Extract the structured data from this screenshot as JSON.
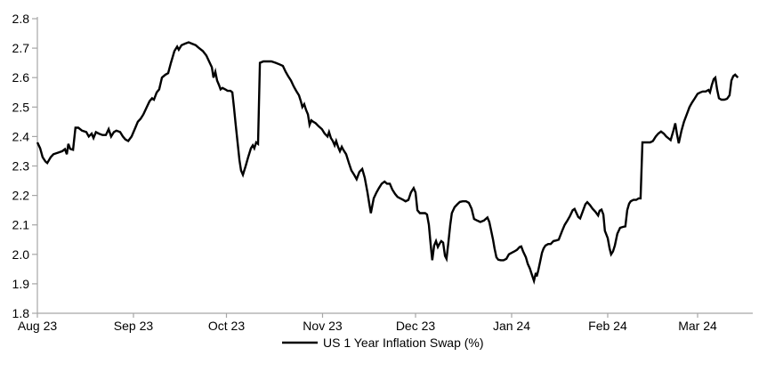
{
  "chart_data": {
    "type": "line",
    "title": "",
    "legend": "US 1 Year Inflation Swap (%)",
    "legend_position": "bottom-center",
    "line_color": "#000000",
    "axis_color": "#a6a6a6",
    "tick_color": "#a6a6a6",
    "text_color": "#000000",
    "grid": false,
    "ylim": [
      1.8,
      2.8
    ],
    "y_ticks": [
      "1.8",
      "1.9",
      "2.0",
      "2.1",
      "2.2",
      "2.3",
      "2.4",
      "2.5",
      "2.6",
      "2.7",
      "2.8"
    ],
    "x_ticks": [
      {
        "label": "Aug 23",
        "day": 0
      },
      {
        "label": "Sep 23",
        "day": 31
      },
      {
        "label": "Oct 23",
        "day": 61
      },
      {
        "label": "Nov 23",
        "day": 92
      },
      {
        "label": "Dec 23",
        "day": 122
      },
      {
        "label": "Jan 24",
        "day": 153
      },
      {
        "label": "Feb 24",
        "day": 184
      },
      {
        "label": "Mar 24",
        "day": 213
      }
    ],
    "series": [
      {
        "name": "US 1 Year Inflation Swap (%)",
        "points": [
          [
            0,
            2.38
          ],
          [
            0.9,
            2.36
          ],
          [
            1.7,
            2.33
          ],
          [
            2.6,
            2.315
          ],
          [
            3.2,
            2.31
          ],
          [
            4.3,
            2.33
          ],
          [
            5.2,
            2.34
          ],
          [
            6.6,
            2.345
          ],
          [
            8,
            2.35
          ],
          [
            8.9,
            2.357
          ],
          [
            9.5,
            2.34
          ],
          [
            10,
            2.375
          ],
          [
            10.6,
            2.358
          ],
          [
            11.5,
            2.355
          ],
          [
            12.3,
            2.43
          ],
          [
            13.2,
            2.43
          ],
          [
            14.4,
            2.42
          ],
          [
            15.8,
            2.415
          ],
          [
            16.6,
            2.4
          ],
          [
            17.5,
            2.41
          ],
          [
            18.1,
            2.395
          ],
          [
            18.9,
            2.415
          ],
          [
            19.8,
            2.41
          ],
          [
            21,
            2.405
          ],
          [
            22.1,
            2.405
          ],
          [
            23,
            2.425
          ],
          [
            23.8,
            2.4
          ],
          [
            24.7,
            2.415
          ],
          [
            25.5,
            2.42
          ],
          [
            26.7,
            2.415
          ],
          [
            27.6,
            2.4
          ],
          [
            28.4,
            2.39
          ],
          [
            29.3,
            2.385
          ],
          [
            30.4,
            2.4
          ],
          [
            31.6,
            2.43
          ],
          [
            32.4,
            2.45
          ],
          [
            33.3,
            2.46
          ],
          [
            34.2,
            2.475
          ],
          [
            35.3,
            2.5
          ],
          [
            36.2,
            2.52
          ],
          [
            37,
            2.53
          ],
          [
            37.6,
            2.525
          ],
          [
            38.5,
            2.55
          ],
          [
            39.3,
            2.56
          ],
          [
            40.2,
            2.6
          ],
          [
            41.3,
            2.61
          ],
          [
            42.2,
            2.615
          ],
          [
            43.1,
            2.65
          ],
          [
            44.2,
            2.69
          ],
          [
            45.1,
            2.705
          ],
          [
            45.6,
            2.695
          ],
          [
            46.5,
            2.71
          ],
          [
            47.6,
            2.715
          ],
          [
            48.8,
            2.72
          ],
          [
            49.9,
            2.715
          ],
          [
            51.1,
            2.71
          ],
          [
            52.2,
            2.7
          ],
          [
            53.4,
            2.69
          ],
          [
            54.5,
            2.675
          ],
          [
            55.4,
            2.655
          ],
          [
            56.3,
            2.635
          ],
          [
            56.8,
            2.6
          ],
          [
            57.4,
            2.62
          ],
          [
            58,
            2.59
          ],
          [
            58.6,
            2.575
          ],
          [
            59.1,
            2.56
          ],
          [
            59.7,
            2.565
          ],
          [
            60.6,
            2.56
          ],
          [
            61.4,
            2.555
          ],
          [
            62.3,
            2.555
          ],
          [
            62.9,
            2.55
          ],
          [
            63.4,
            2.5
          ],
          [
            64,
            2.44
          ],
          [
            64.6,
            2.38
          ],
          [
            65.2,
            2.32
          ],
          [
            65.7,
            2.285
          ],
          [
            66.3,
            2.27
          ],
          [
            67.2,
            2.3
          ],
          [
            68,
            2.33
          ],
          [
            68.9,
            2.36
          ],
          [
            69.5,
            2.37
          ],
          [
            70,
            2.36
          ],
          [
            70.6,
            2.38
          ],
          [
            71.2,
            2.375
          ],
          [
            71.8,
            2.65
          ],
          [
            72.9,
            2.655
          ],
          [
            74,
            2.655
          ],
          [
            75.5,
            2.655
          ],
          [
            76.9,
            2.65
          ],
          [
            78.1,
            2.645
          ],
          [
            79.2,
            2.64
          ],
          [
            80.1,
            2.62
          ],
          [
            80.9,
            2.605
          ],
          [
            81.8,
            2.59
          ],
          [
            82.7,
            2.57
          ],
          [
            83.5,
            2.555
          ],
          [
            84.4,
            2.54
          ],
          [
            85,
            2.52
          ],
          [
            85.5,
            2.5
          ],
          [
            86.1,
            2.51
          ],
          [
            86.7,
            2.49
          ],
          [
            87.3,
            2.475
          ],
          [
            87.8,
            2.44
          ],
          [
            88.4,
            2.455
          ],
          [
            89,
            2.45
          ],
          [
            89.8,
            2.445
          ],
          [
            90.7,
            2.435
          ],
          [
            91.8,
            2.425
          ],
          [
            92.7,
            2.41
          ],
          [
            93.6,
            2.4
          ],
          [
            94.1,
            2.415
          ],
          [
            94.7,
            2.395
          ],
          [
            95.3,
            2.385
          ],
          [
            95.9,
            2.37
          ],
          [
            96.4,
            2.385
          ],
          [
            97,
            2.365
          ],
          [
            97.6,
            2.35
          ],
          [
            98.2,
            2.365
          ],
          [
            98.7,
            2.355
          ],
          [
            99.6,
            2.34
          ],
          [
            100.5,
            2.31
          ],
          [
            101.3,
            2.285
          ],
          [
            102.2,
            2.27
          ],
          [
            103,
            2.255
          ],
          [
            103.9,
            2.28
          ],
          [
            104.8,
            2.29
          ],
          [
            105.6,
            2.26
          ],
          [
            106.5,
            2.21
          ],
          [
            107.1,
            2.17
          ],
          [
            107.6,
            2.14
          ],
          [
            108.5,
            2.19
          ],
          [
            109.4,
            2.21
          ],
          [
            110.2,
            2.225
          ],
          [
            111.1,
            2.24
          ],
          [
            112,
            2.247
          ],
          [
            112.8,
            2.24
          ],
          [
            113.7,
            2.24
          ],
          [
            114.5,
            2.22
          ],
          [
            115.4,
            2.205
          ],
          [
            116.2,
            2.195
          ],
          [
            117.1,
            2.19
          ],
          [
            118,
            2.185
          ],
          [
            118.8,
            2.18
          ],
          [
            119.7,
            2.185
          ],
          [
            120.5,
            2.21
          ],
          [
            121.4,
            2.225
          ],
          [
            122,
            2.21
          ],
          [
            122.6,
            2.15
          ],
          [
            123.4,
            2.14
          ],
          [
            124.3,
            2.14
          ],
          [
            125.1,
            2.14
          ],
          [
            125.7,
            2.135
          ],
          [
            126.3,
            2.1
          ],
          [
            126.9,
            2.03
          ],
          [
            127.4,
            1.98
          ],
          [
            128,
            2.03
          ],
          [
            128.6,
            2.045
          ],
          [
            129.2,
            2.025
          ],
          [
            129.7,
            2.035
          ],
          [
            130.3,
            2.045
          ],
          [
            130.9,
            2.04
          ],
          [
            131.5,
            1.995
          ],
          [
            132,
            1.985
          ],
          [
            132.6,
            2.04
          ],
          [
            133.2,
            2.1
          ],
          [
            133.7,
            2.14
          ],
          [
            134.6,
            2.16
          ],
          [
            135.5,
            2.17
          ],
          [
            136.3,
            2.178
          ],
          [
            137.2,
            2.18
          ],
          [
            138.3,
            2.18
          ],
          [
            139.2,
            2.175
          ],
          [
            140.1,
            2.155
          ],
          [
            140.9,
            2.12
          ],
          [
            141.8,
            2.115
          ],
          [
            142.9,
            2.11
          ],
          [
            144.1,
            2.115
          ],
          [
            145.2,
            2.125
          ],
          [
            145.8,
            2.11
          ],
          [
            146.4,
            2.08
          ],
          [
            147,
            2.05
          ],
          [
            147.5,
            2.02
          ],
          [
            148.1,
            1.99
          ],
          [
            148.7,
            1.982
          ],
          [
            149.5,
            1.98
          ],
          [
            150.4,
            1.98
          ],
          [
            151.3,
            1.985
          ],
          [
            152.1,
            2.0
          ],
          [
            153,
            2.005
          ],
          [
            153.9,
            2.01
          ],
          [
            154.7,
            2.015
          ],
          [
            155.6,
            2.025
          ],
          [
            156.1,
            2.027
          ],
          [
            156.7,
            2.01
          ],
          [
            157.6,
            1.99
          ],
          [
            158.2,
            1.968
          ],
          [
            158.9,
            1.952
          ],
          [
            159.4,
            1.935
          ],
          [
            160.2,
            1.91
          ],
          [
            160.8,
            1.937
          ],
          [
            161.1,
            1.925
          ],
          [
            161.6,
            1.945
          ],
          [
            162.2,
            1.975
          ],
          [
            162.8,
            2.005
          ],
          [
            163.3,
            2.02
          ],
          [
            163.9,
            2.03
          ],
          [
            164.8,
            2.035
          ],
          [
            165.6,
            2.035
          ],
          [
            166.5,
            2.045
          ],
          [
            167.4,
            2.047
          ],
          [
            168.2,
            2.05
          ],
          [
            169.3,
            2.08
          ],
          [
            170.1,
            2.1
          ],
          [
            171,
            2.115
          ],
          [
            171.8,
            2.13
          ],
          [
            172.7,
            2.15
          ],
          [
            173.3,
            2.154
          ],
          [
            174.5,
            2.127
          ],
          [
            175.1,
            2.122
          ],
          [
            176,
            2.147
          ],
          [
            176.8,
            2.17
          ],
          [
            177.4,
            2.177
          ],
          [
            178.3,
            2.167
          ],
          [
            179.1,
            2.155
          ],
          [
            180,
            2.145
          ],
          [
            180.9,
            2.132
          ],
          [
            181.4,
            2.148
          ],
          [
            182,
            2.152
          ],
          [
            182.6,
            2.135
          ],
          [
            183.1,
            2.08
          ],
          [
            184,
            2.055
          ],
          [
            184.6,
            2.02
          ],
          [
            185.1,
            2.0
          ],
          [
            185.7,
            2.01
          ],
          [
            186.3,
            2.03
          ],
          [
            187.1,
            2.07
          ],
          [
            188,
            2.09
          ],
          [
            188.9,
            2.093
          ],
          [
            189.7,
            2.095
          ],
          [
            190.3,
            2.15
          ],
          [
            190.9,
            2.172
          ],
          [
            191.4,
            2.18
          ],
          [
            192.3,
            2.185
          ],
          [
            193.2,
            2.185
          ],
          [
            194,
            2.19
          ],
          [
            194.6,
            2.19
          ],
          [
            195.2,
            2.38
          ],
          [
            196,
            2.38
          ],
          [
            196.9,
            2.38
          ],
          [
            197.7,
            2.38
          ],
          [
            198.6,
            2.385
          ],
          [
            199.5,
            2.4
          ],
          [
            200.3,
            2.41
          ],
          [
            201.2,
            2.417
          ],
          [
            202.1,
            2.41
          ],
          [
            202.9,
            2.4
          ],
          [
            203.8,
            2.392
          ],
          [
            204.3,
            2.388
          ],
          [
            205.2,
            2.42
          ],
          [
            205.8,
            2.445
          ],
          [
            206.3,
            2.41
          ],
          [
            206.9,
            2.377
          ],
          [
            207.8,
            2.42
          ],
          [
            208.6,
            2.45
          ],
          [
            209.5,
            2.475
          ],
          [
            210.4,
            2.5
          ],
          [
            211.2,
            2.515
          ],
          [
            212.1,
            2.53
          ],
          [
            213,
            2.545
          ],
          [
            213.9,
            2.55
          ],
          [
            214.7,
            2.553
          ],
          [
            215.6,
            2.553
          ],
          [
            216.5,
            2.558
          ],
          [
            217,
            2.55
          ],
          [
            217.6,
            2.575
          ],
          [
            218.2,
            2.595
          ],
          [
            218.7,
            2.6
          ],
          [
            219.3,
            2.56
          ],
          [
            219.9,
            2.53
          ],
          [
            220.7,
            2.525
          ],
          [
            221.6,
            2.525
          ],
          [
            222.5,
            2.528
          ],
          [
            223.3,
            2.54
          ],
          [
            223.9,
            2.59
          ],
          [
            224.5,
            2.605
          ],
          [
            225.1,
            2.61
          ],
          [
            226,
            2.6
          ]
        ]
      }
    ]
  }
}
